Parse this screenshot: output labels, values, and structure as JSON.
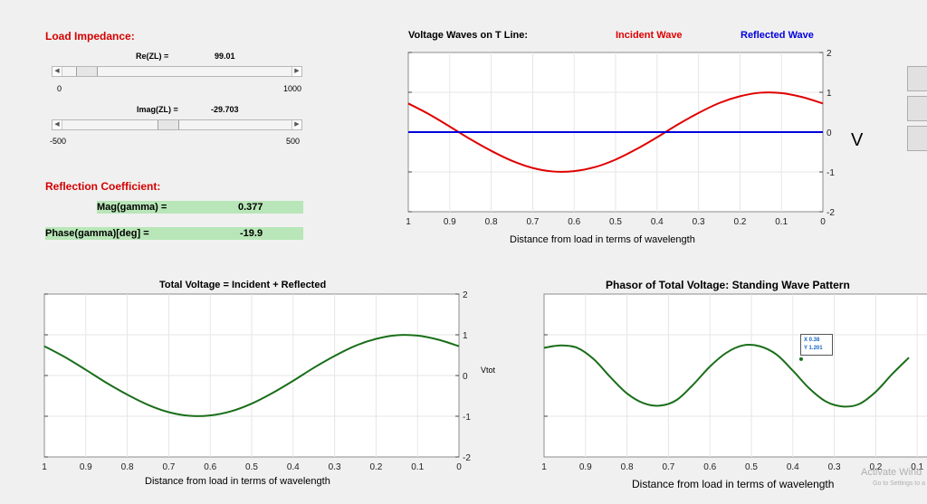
{
  "load": {
    "title": "Load Impedance:",
    "re_label": "Re(ZL) =",
    "re_value": "99.01",
    "re_min": "0",
    "re_max": "1000",
    "im_label": "Imag(ZL) =",
    "im_value": "-29.703",
    "im_min": "-500",
    "im_max": "500"
  },
  "reflection": {
    "title": "Reflection Coefficient:",
    "mag_label": "Mag(gamma) =",
    "mag_value": "0.377",
    "phase_label": "Phase(gamma)[deg] =",
    "phase_value": "-19.9"
  },
  "plot1": {
    "title": "Voltage Waves on T Line:",
    "legend_incident": "Incident Wave",
    "legend_reflected": "Reflected Wave",
    "xlabel": "Distance from load in terms of wavelength",
    "unit": "V"
  },
  "plot2": {
    "title": "Total Voltage = Incident + Reflected",
    "xlabel": "Distance from load in terms of wavelength",
    "ylabel": "Vtot"
  },
  "plot3": {
    "title": "Phasor of Total Voltage: Standing Wave Pattern",
    "xlabel": "Distance from load in terms of wavelength",
    "datatip_x": "X 0.38",
    "datatip_y": "Y 1.201"
  },
  "watermark": {
    "line1": "Activate Wind",
    "line2": "Go to Settings to a"
  },
  "colors": {
    "incident": "#e00000",
    "reflected": "#0000dd",
    "total": "#1a6e1a"
  },
  "chart_data": [
    {
      "type": "line",
      "title": "Voltage Waves on T Line:",
      "xlabel": "Distance from load in terms of wavelength",
      "ylabel": "",
      "x_ticks": [
        "1",
        "0.9",
        "0.8",
        "0.7",
        "0.6",
        "0.5",
        "0.4",
        "0.3",
        "0.2",
        "0.1",
        "0"
      ],
      "y_ticks": [
        "2",
        "1",
        "0",
        "-1",
        "-2"
      ],
      "xlim": [
        1,
        0
      ],
      "ylim": [
        -2,
        2
      ],
      "series": [
        {
          "name": "Incident Wave",
          "x": [
            1,
            0.95,
            0.9,
            0.85,
            0.8,
            0.75,
            0.7,
            0.65,
            0.6,
            0.55,
            0.5,
            0.45,
            0.4,
            0.35,
            0.3,
            0.25,
            0.2,
            0.15,
            0.1,
            0.05,
            0
          ],
          "y": [
            0.72,
            0.45,
            0.14,
            -0.18,
            -0.47,
            -0.72,
            -0.9,
            -0.99,
            -0.98,
            -0.88,
            -0.69,
            -0.43,
            -0.13,
            0.19,
            0.48,
            0.73,
            0.9,
            0.99,
            0.98,
            0.88,
            0.72
          ]
        },
        {
          "name": "Reflected Wave",
          "x": [
            1,
            0
          ],
          "y": [
            0,
            0
          ]
        }
      ]
    },
    {
      "type": "line",
      "title": "Total Voltage = Incident + Reflected",
      "xlabel": "Distance from load in terms of wavelength",
      "ylabel": "Vtot",
      "x_ticks": [
        "1",
        "0.9",
        "0.8",
        "0.7",
        "0.6",
        "0.5",
        "0.4",
        "0.3",
        "0.2",
        "0.1",
        "0"
      ],
      "y_ticks": [
        "2",
        "1",
        "0",
        "-1",
        "-2"
      ],
      "xlim": [
        1,
        0
      ],
      "ylim": [
        -2,
        2
      ],
      "series": [
        {
          "x": [
            1,
            0.95,
            0.9,
            0.85,
            0.8,
            0.75,
            0.7,
            0.65,
            0.6,
            0.55,
            0.5,
            0.45,
            0.4,
            0.35,
            0.3,
            0.25,
            0.2,
            0.15,
            0.1,
            0.05,
            0
          ],
          "y": [
            0.72,
            0.45,
            0.14,
            -0.18,
            -0.47,
            -0.72,
            -0.9,
            -0.99,
            -0.98,
            -0.88,
            -0.69,
            -0.43,
            -0.13,
            0.19,
            0.48,
            0.73,
            0.9,
            0.99,
            0.98,
            0.88,
            0.72
          ]
        }
      ]
    },
    {
      "type": "line",
      "title": "Phasor of Total Voltage: Standing Wave Pattern",
      "xlabel": "Distance from load in terms of wavelength",
      "ylabel": "",
      "x_ticks": [
        "1",
        "0.9",
        "0.8",
        "0.7",
        "0.6",
        "0.5",
        "0.4",
        "0.3",
        "0.2",
        "0.1"
      ],
      "xlim": [
        1,
        0
      ],
      "series": [
        {
          "x": [
            1,
            0.96,
            0.92,
            0.88,
            0.84,
            0.8,
            0.76,
            0.72,
            0.68,
            0.64,
            0.6,
            0.56,
            0.52,
            0.48,
            0.44,
            0.4,
            0.36,
            0.32,
            0.28,
            0.24,
            0.2,
            0.16,
            0.12
          ],
          "y": [
            1.34,
            1.37,
            1.34,
            1.2,
            0.98,
            0.78,
            0.66,
            0.63,
            0.7,
            0.89,
            1.11,
            1.28,
            1.37,
            1.36,
            1.26,
            1.06,
            0.84,
            0.68,
            0.62,
            0.65,
            0.8,
            1.02,
            1.22
          ]
        }
      ],
      "datatip": {
        "x": 0.38,
        "y": 1.201
      }
    }
  ]
}
